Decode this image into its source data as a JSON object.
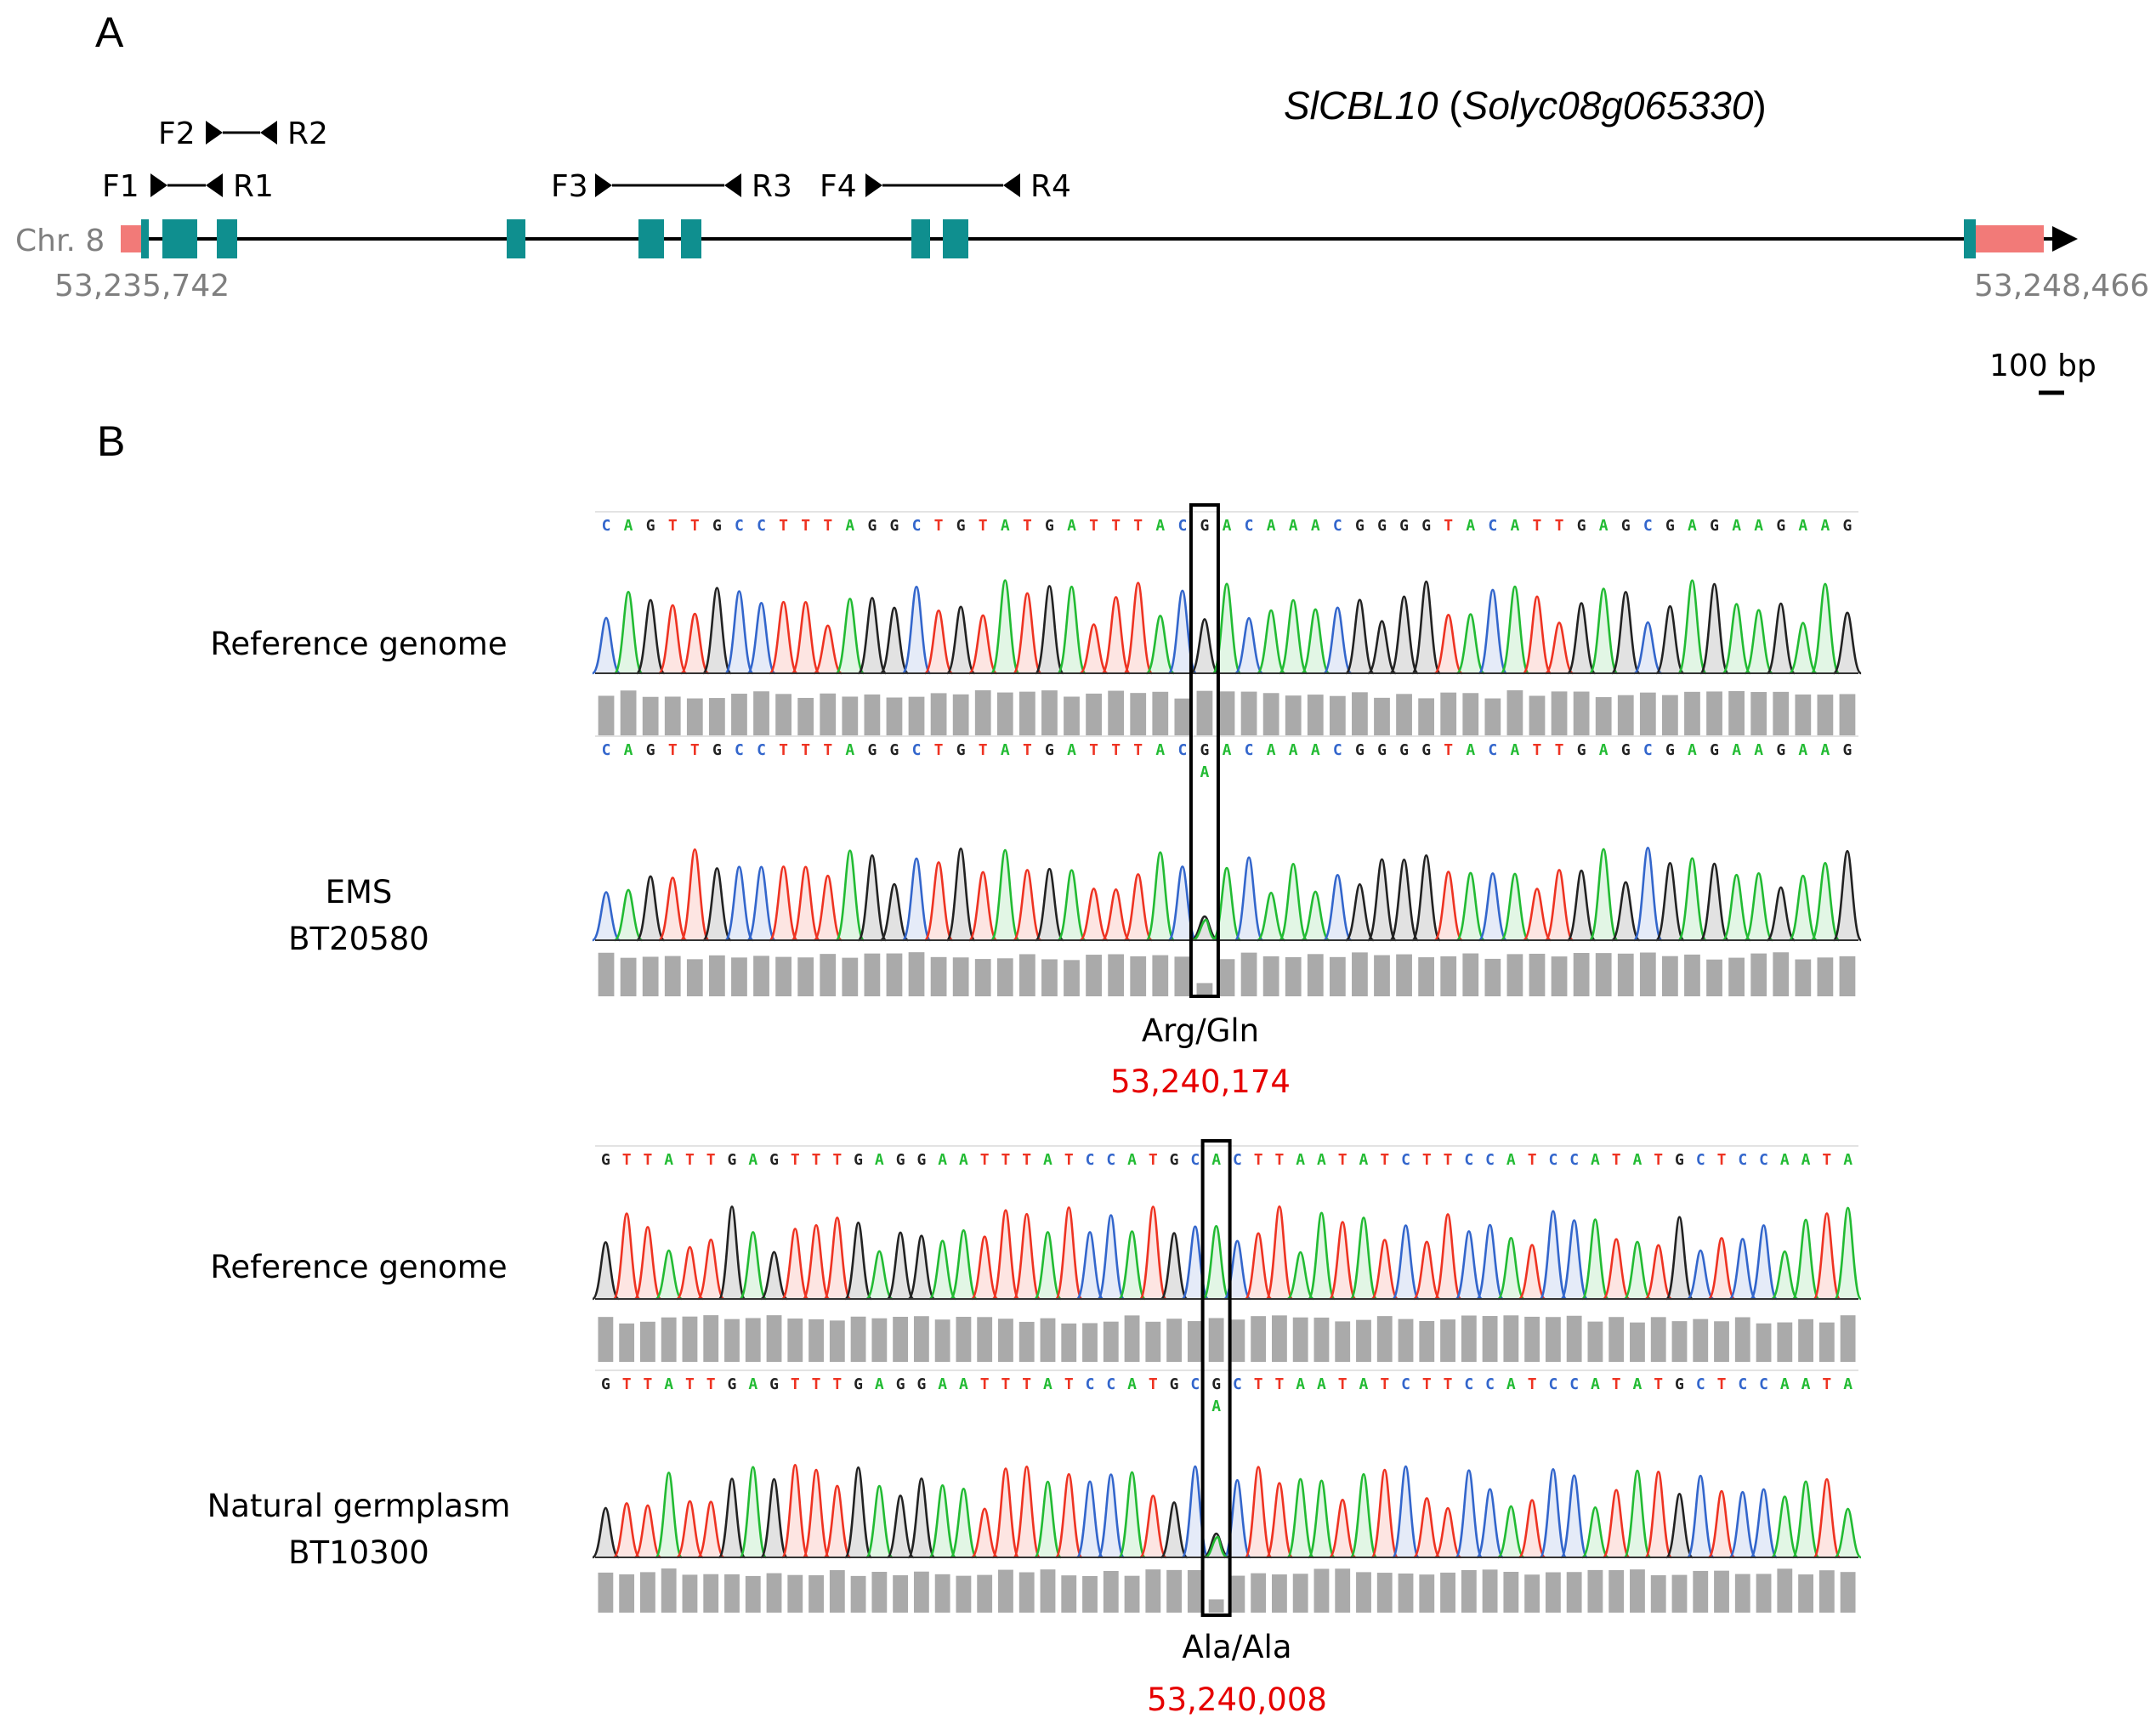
{
  "panels": {
    "a": {
      "letter": "A",
      "gene_italic_1": "SlCBL10",
      "gene_paren_open": " (",
      "gene_italic_2": "Solyc08g065330",
      "gene_paren_close": ")",
      "chromosome": "Chr. 8",
      "start": "53,235,742",
      "end": "53,248,466",
      "scale": "100 bp",
      "primers": [
        "F1",
        "R1",
        "F2",
        "R2",
        "F3",
        "R3",
        "F4",
        "R4"
      ]
    },
    "b": {
      "letter": "B"
    }
  },
  "groups": [
    {
      "ref_label": "Reference genome",
      "sample_line1": "EMS",
      "sample_line2": "BT20580",
      "ref_sequence": "CAGTTGCCTTTAGGCTGTATGATTTACGACAAACGGGGTACATTGAGCGAGAAGAAG",
      "sample_sequence": "CAGTTGCCTTTAGGCTGTATGATTTACGACAAACGGGGTACATTGAGCGAGAAGAAG",
      "secondary_base": "A",
      "highlight_index": 27,
      "aa_change": "Arg/Gln",
      "position": "53,240,174"
    },
    {
      "ref_label": "Reference genome",
      "sample_line1": "Natural germplasm",
      "sample_line2": "BT10300",
      "ref_sequence": "GTTATTGAGTTTGAGGAATTTATCCATGCACTTAATATCTTCCATCCATATGCTCCAATA",
      "sample_sequence": "GTTATTGAGTTTGAGGAATTTATCCATGCGCTTAATATCTTCCATCCATATGCTCCAATA",
      "secondary_base": "A",
      "highlight_index": 29,
      "aa_change": "Ala/Ala",
      "position": "53,240,008"
    }
  ],
  "colors": {
    "A": "#22bb33",
    "C": "#3366cc",
    "G": "#222222",
    "T": "#ee3322",
    "exon": "#0f8f8f",
    "utr": "#f27a78",
    "quality": "#aaaaaa",
    "position_text": "#e60000",
    "grey_text": "#7f7f7f"
  }
}
